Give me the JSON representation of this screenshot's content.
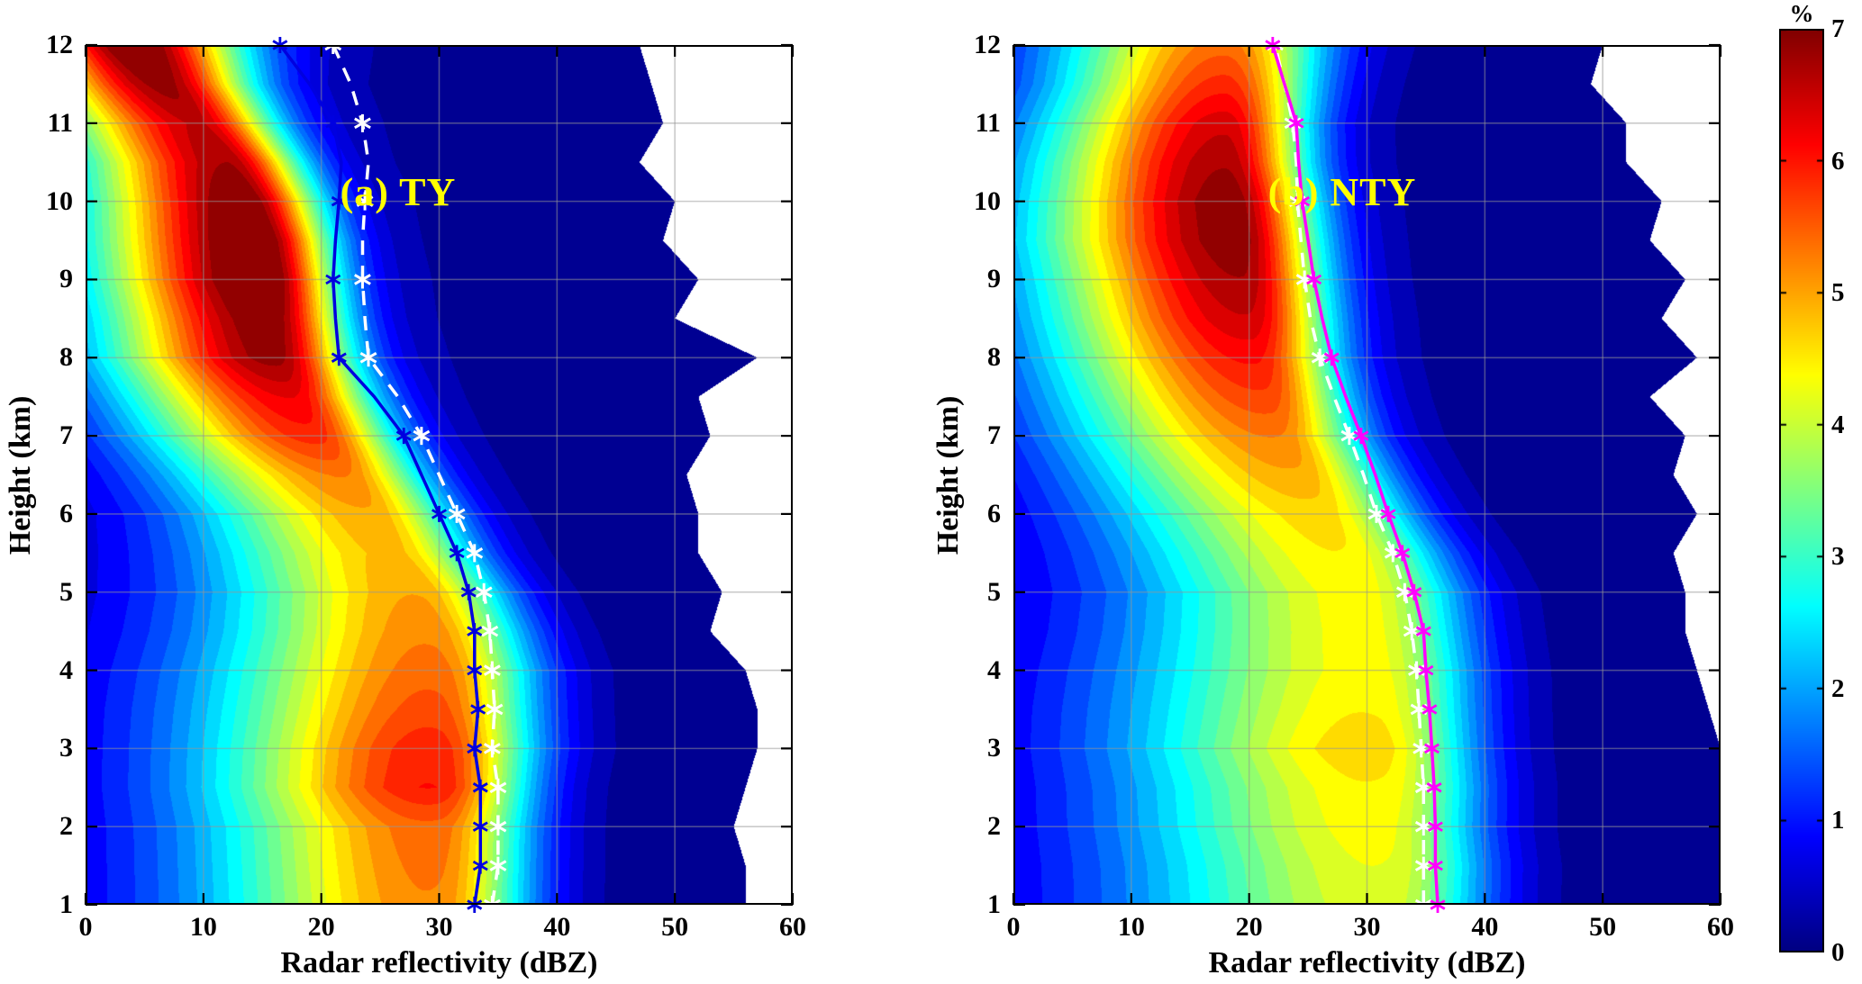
{
  "colorbar": {
    "label": "%",
    "min": 0,
    "max": 7,
    "ticks": [
      0,
      1,
      2,
      3,
      4,
      5,
      6,
      7
    ],
    "colormap": "jet"
  },
  "chart_data": [
    {
      "type": "heatmap",
      "subtype": "filled_contour_cfad",
      "panel_label": "(a) TY",
      "panel_label_color": "#ffff00",
      "xlabel": "Radar reflectivity (dBZ)",
      "ylabel": "Height (km)",
      "xlim": [
        0,
        60
      ],
      "ylim": [
        1,
        12
      ],
      "xticks": [
        0,
        10,
        20,
        30,
        40,
        50,
        60
      ],
      "yticks": [
        1,
        2,
        3,
        4,
        5,
        6,
        7,
        8,
        9,
        10,
        11,
        12
      ],
      "grid": true,
      "colormap": "jet",
      "units": "%",
      "level_step": 0.25,
      "frequency_field": {
        "heights": [
          1,
          1.5,
          2,
          2.5,
          3,
          3.5,
          4,
          4.5,
          5,
          5.5,
          6,
          6.5,
          7,
          7.5,
          8,
          8.5,
          9,
          9.5,
          10,
          10.5,
          11,
          11.5,
          12
        ],
        "mode_dbz": [
          30,
          30,
          30,
          30,
          30,
          30,
          30,
          29.5,
          28.5,
          26.5,
          24.5,
          22,
          19.5,
          17.5,
          16,
          15.5,
          15,
          14.5,
          13.5,
          12,
          9.5,
          6.5,
          4
        ],
        "peak_percent": [
          4.8,
          4.9,
          5.0,
          5.6,
          5.5,
          5.2,
          5.0,
          4.8,
          4.6,
          4.4,
          4.5,
          4.8,
          5.4,
          5.8,
          6.4,
          6.6,
          6.9,
          6.9,
          6.7,
          6.4,
          6.2,
          6.6,
          7.0
        ],
        "sigma_left": [
          12,
          12,
          12,
          12,
          12,
          12,
          12,
          11.5,
          11,
          10.5,
          10,
          10,
          10,
          10,
          10,
          10,
          10,
          10,
          9.5,
          9,
          8.5,
          7.5,
          6.5
        ],
        "sigma_right": [
          5.5,
          5.5,
          5.5,
          5.5,
          5.8,
          5.8,
          5.8,
          5.5,
          5.2,
          5,
          5,
          5,
          5,
          5,
          4.8,
          4.6,
          4.5,
          4.5,
          4.5,
          4.5,
          4.8,
          5.5,
          6.5
        ],
        "bg_percent": [
          0.9,
          0.9,
          0.9,
          0.9,
          0.9,
          0.9,
          0.85,
          0.8,
          0.75,
          0.7,
          0.65,
          0.6,
          0.55,
          0.5,
          0.5,
          0.45,
          0.45,
          0.4,
          0.4,
          0.35,
          0.35,
          0.3,
          0.3
        ],
        "bg_center_dbz": 12,
        "bg_sigma": 14,
        "max_dbz_extent": [
          56,
          56,
          55,
          56,
          57,
          57,
          56,
          53,
          54,
          52,
          52,
          51,
          53,
          52,
          57,
          50,
          52,
          49,
          50,
          47,
          49,
          48,
          47
        ]
      },
      "profiles": {
        "heights": [
          1,
          1.5,
          2,
          2.5,
          3,
          3.5,
          4,
          4.5,
          5,
          5.5,
          6,
          6.5,
          7,
          7.5,
          8,
          8.5,
          9,
          9.5,
          10,
          10.5,
          11,
          11.5,
          12
        ],
        "solid_profile": {
          "color": "#0000e0",
          "style": "solid",
          "marker": "asterisk",
          "dbz": [
            33,
            33.5,
            33.5,
            33.5,
            33,
            33.3,
            33,
            33,
            32.5,
            31.5,
            30,
            28.5,
            27,
            24.5,
            21.5,
            21.2,
            21,
            21.2,
            21.5,
            21.7,
            21,
            19,
            16.5
          ]
        },
        "dashed_profile": {
          "color": "#ffffff",
          "style": "dashed",
          "marker": "asterisk",
          "dbz": [
            34.5,
            35,
            35,
            35,
            34.5,
            34.7,
            34.5,
            34.3,
            33.8,
            33,
            31.5,
            30,
            28.5,
            26.5,
            24,
            23.7,
            23.5,
            23.5,
            23.7,
            24,
            23.5,
            22.5,
            21
          ]
        }
      }
    },
    {
      "type": "heatmap",
      "subtype": "filled_contour_cfad",
      "panel_label": "(b) NTY",
      "panel_label_color": "#ffff00",
      "xlabel": "Radar reflectivity (dBZ)",
      "ylabel": "Height (km)",
      "xlim": [
        0,
        60
      ],
      "ylim": [
        1,
        12
      ],
      "xticks": [
        0,
        10,
        20,
        30,
        40,
        50,
        60
      ],
      "yticks": [
        1,
        2,
        3,
        4,
        5,
        6,
        7,
        8,
        9,
        10,
        11,
        12
      ],
      "grid": true,
      "colormap": "jet",
      "units": "%",
      "level_step": 0.25,
      "frequency_field": {
        "heights": [
          1,
          1.5,
          2,
          2.5,
          3,
          3.5,
          4,
          4.5,
          5,
          5.5,
          6,
          6.5,
          7,
          7.5,
          8,
          8.5,
          9,
          9.5,
          10,
          10.5,
          11,
          11.5,
          12
        ],
        "mode_dbz": [
          32,
          32,
          31.5,
          31.5,
          31,
          31,
          31,
          30.5,
          30,
          28.5,
          26.5,
          24.5,
          22.5,
          21.5,
          20.5,
          20,
          19.5,
          19,
          18.5,
          18,
          18,
          18,
          18
        ],
        "peak_percent": [
          3.8,
          3.9,
          4.0,
          4.1,
          4.3,
          4.1,
          4.0,
          4.0,
          4.0,
          4.1,
          4.2,
          4.5,
          4.8,
          5.2,
          5.6,
          6.0,
          6.3,
          6.5,
          6.5,
          6.3,
          6.0,
          5.5,
          5.0
        ],
        "sigma_left": [
          13,
          13,
          13,
          13,
          13,
          13,
          13,
          12.5,
          12,
          12,
          12,
          12,
          12,
          12,
          12,
          12,
          12,
          12,
          11.5,
          11,
          10.5,
          10,
          10
        ],
        "sigma_right": [
          6,
          6,
          6,
          6,
          6,
          6,
          6,
          6,
          6,
          5.8,
          5.5,
          5.3,
          5.2,
          5,
          5,
          5,
          5,
          5,
          5,
          5,
          5,
          5.5,
          6
        ],
        "bg_percent": [
          0.9,
          0.9,
          0.9,
          0.9,
          0.9,
          0.9,
          0.85,
          0.8,
          0.8,
          0.75,
          0.7,
          0.65,
          0.6,
          0.6,
          0.55,
          0.55,
          0.5,
          0.5,
          0.5,
          0.45,
          0.45,
          0.4,
          0.4
        ],
        "bg_center_dbz": 12,
        "bg_sigma": 14,
        "max_dbz_extent": [
          60,
          60,
          60,
          60,
          60,
          59,
          58,
          57,
          57,
          56,
          58,
          56,
          57,
          54,
          58,
          55,
          57,
          54,
          55,
          52,
          52,
          49,
          50
        ]
      },
      "profiles": {
        "heights": [
          1,
          1.5,
          2,
          2.5,
          3,
          3.5,
          4,
          4.5,
          5,
          5.5,
          6,
          6.5,
          7,
          7.5,
          8,
          8.5,
          9,
          9.5,
          10,
          10.5,
          11,
          11.5,
          12
        ],
        "solid_profile": {
          "color": "#ff00ff",
          "style": "solid",
          "marker": "asterisk",
          "dbz": [
            36,
            35.8,
            35.8,
            35.7,
            35.5,
            35.3,
            35,
            34.8,
            34,
            33,
            31.8,
            30.7,
            29.5,
            28.2,
            27,
            26.2,
            25.5,
            25,
            24.5,
            24.2,
            24,
            23,
            22
          ]
        },
        "dashed_profile": {
          "color": "#ffffff",
          "style": "dashed",
          "marker": "asterisk",
          "dbz": [
            34.8,
            34.8,
            34.8,
            34.8,
            34.6,
            34.4,
            34.2,
            33.8,
            33.2,
            32.2,
            30.8,
            29.7,
            28.5,
            27.2,
            26,
            25.2,
            24.7,
            24.4,
            24.1,
            24,
            23.7,
            23,
            22.2
          ]
        }
      }
    }
  ]
}
